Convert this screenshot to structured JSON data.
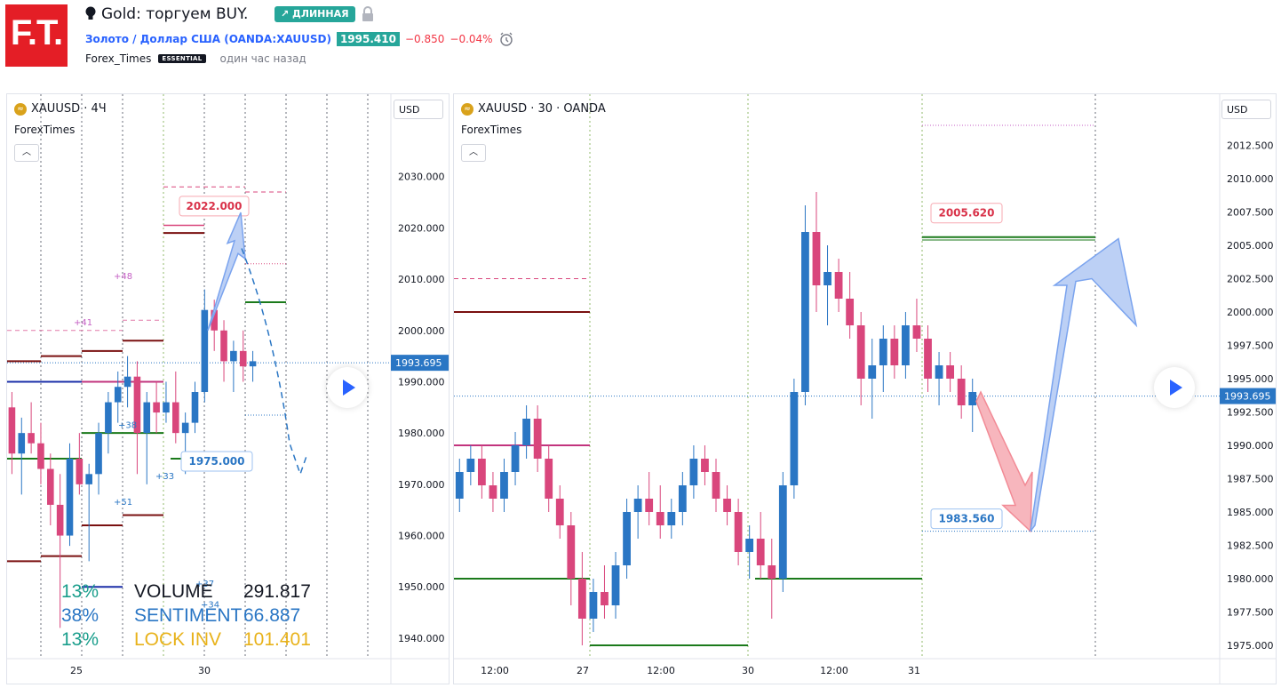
{
  "header": {
    "logo_text": "F.T.",
    "idea_title": "Gold: торгуем BUY.",
    "position_badge": "↗ ДЛИННАЯ",
    "symbol_name": "Золото / Доллар США",
    "symbol_code": "(OANDA:XAUUSD)",
    "price": "1995.410",
    "change": "−0.850",
    "change_pct": "−0.04%",
    "author": "Forex_Times",
    "author_badge": "ESSENTIAL",
    "time_ago": "один час назад"
  },
  "colors": {
    "up": "#2a76c4",
    "down": "#d9467c",
    "brand": "#e41e26",
    "accent": "#26a69a",
    "target_blue": "#2962ff",
    "target_red": "#f23645"
  },
  "left_panel": {
    "title": "XAUUSD · 4Ч",
    "subtitle": "ForexTimes",
    "currency": "USD",
    "last_price_label": "1993.695",
    "annotations": {
      "upper": "2022.000",
      "lower": "1975.000"
    },
    "small_labels": [
      "+48",
      "+41",
      "+38",
      "+33",
      "+51",
      "+37",
      "+34"
    ],
    "stats": [
      {
        "pct": "13%",
        "name": "VOLUME",
        "value": "291.817",
        "color": "#1a9e8c",
        "name_color": "#131722",
        "value_color": "#131722"
      },
      {
        "pct": "38%",
        "name": "SENTIMENT",
        "value": "66.887",
        "color": "#2a76c4",
        "name_color": "#2a76c4",
        "value_color": "#2a76c4"
      },
      {
        "pct": "13%",
        "name": "LOCK INV",
        "value": "101.401",
        "color": "#1a9e8c",
        "name_color": "#e8b21a",
        "value_color": "#e8b21a"
      }
    ]
  },
  "right_panel": {
    "title": "XAUUSD · 30 · OANDA",
    "subtitle": "ForexTimes",
    "currency": "USD",
    "last_price_label": "1993.695",
    "annotations": {
      "upper": "2005.620",
      "lower": "1983.560"
    }
  },
  "chart_data": [
    {
      "type": "candlestick",
      "title": "XAUUSD · 4Ч",
      "y_ticks": [
        "1940.000",
        "1950.000",
        "1960.000",
        "1970.000",
        "1980.000",
        "1990.000",
        "2000.000",
        "2010.000",
        "2020.000",
        "2030.000"
      ],
      "x_ticks": [
        "25",
        "30"
      ],
      "ylim": [
        1936,
        2040
      ],
      "last_price": 1993.695,
      "target_up": 2022.0,
      "target_down": 1975.0,
      "series": [
        {
          "name": "XAUUSD",
          "ohlc": [
            [
              1985,
              1988,
              1972,
              1976
            ],
            [
              1976,
              1983,
              1968,
              1980
            ],
            [
              1980,
              1986,
              1976,
              1978
            ],
            [
              1978,
              1982,
              1970,
              1973
            ],
            [
              1973,
              1976,
              1962,
              1966
            ],
            [
              1966,
              1972,
              1942,
              1960
            ],
            [
              1960,
              1978,
              1958,
              1975
            ],
            [
              1975,
              1980,
              1968,
              1970
            ],
            [
              1970,
              1974,
              1955,
              1972
            ],
            [
              1972,
              1982,
              1968,
              1980
            ],
            [
              1980,
              1988,
              1976,
              1986
            ],
            [
              1986,
              1992,
              1982,
              1989
            ],
            [
              1989,
              1995,
              1985,
              1991
            ],
            [
              1991,
              1994,
              1972,
              1980
            ],
            [
              1980,
              1988,
              1970,
              1986
            ],
            [
              1986,
              1990,
              1980,
              1984
            ],
            [
              1984,
              1990,
              1982,
              1986
            ],
            [
              1986,
              1992,
              1978,
              1980
            ],
            [
              1980,
              1984,
              1972,
              1982
            ],
            [
              1982,
              1990,
              1980,
              1988
            ],
            [
              1988,
              2008,
              1986,
              2004
            ],
            [
              2004,
              2006,
              1996,
              2000
            ],
            [
              2000,
              2002,
              1990,
              1994
            ],
            [
              1994,
              1998,
              1988,
              1996
            ],
            [
              1996,
              2000,
              1990,
              1993
            ],
            [
              1993,
              1996,
              1990,
              1994
            ]
          ]
        }
      ]
    },
    {
      "type": "candlestick",
      "title": "XAUUSD · 30 · OANDA",
      "y_ticks": [
        "1975.000",
        "1977.500",
        "1980.000",
        "1982.500",
        "1985.000",
        "1987.500",
        "1990.000",
        "1992.500",
        "1995.000",
        "1997.500",
        "2000.000",
        "2002.500",
        "2005.000",
        "2007.500",
        "2010.000",
        "2012.500"
      ],
      "x_ticks": [
        "12:00",
        "27",
        "12:00",
        "30",
        "12:00",
        "31"
      ],
      "ylim": [
        1974,
        2014
      ],
      "last_price": 1993.695,
      "target_up": 2005.62,
      "target_down": 1983.56,
      "series": [
        {
          "name": "XAUUSD",
          "ohlc": [
            [
              1986,
              1989,
              1985,
              1988
            ],
            [
              1988,
              1990,
              1987,
              1989
            ],
            [
              1989,
              1990,
              1986,
              1987
            ],
            [
              1987,
              1988,
              1985,
              1986
            ],
            [
              1986,
              1989,
              1985,
              1988
            ],
            [
              1988,
              1991,
              1987,
              1990
            ],
            [
              1990,
              1993,
              1989,
              1992
            ],
            [
              1992,
              1993,
              1988,
              1989
            ],
            [
              1989,
              1990,
              1985,
              1986
            ],
            [
              1986,
              1987,
              1983,
              1984
            ],
            [
              1984,
              1985,
              1978,
              1980
            ],
            [
              1980,
              1982,
              1975,
              1977
            ],
            [
              1977,
              1980,
              1976,
              1979
            ],
            [
              1979,
              1981,
              1977,
              1978
            ],
            [
              1978,
              1982,
              1977,
              1981
            ],
            [
              1981,
              1986,
              1980,
              1985
            ],
            [
              1985,
              1987,
              1983,
              1986
            ],
            [
              1986,
              1988,
              1984,
              1985
            ],
            [
              1985,
              1987,
              1983,
              1984
            ],
            [
              1984,
              1986,
              1983,
              1985
            ],
            [
              1985,
              1988,
              1984,
              1987
            ],
            [
              1987,
              1990,
              1986,
              1989
            ],
            [
              1989,
              1990,
              1987,
              1988
            ],
            [
              1988,
              1989,
              1985,
              1986
            ],
            [
              1986,
              1987,
              1984,
              1985
            ],
            [
              1985,
              1986,
              1981,
              1982
            ],
            [
              1982,
              1984,
              1980,
              1983
            ],
            [
              1983,
              1985,
              1980,
              1981
            ],
            [
              1981,
              1983,
              1977,
              1980
            ],
            [
              1980,
              1988,
              1979,
              1987
            ],
            [
              1987,
              1995,
              1986,
              1994
            ],
            [
              1994,
              2008,
              1993,
              2006
            ],
            [
              2006,
              2009,
              2000,
              2002
            ],
            [
              2002,
              2005,
              1999,
              2003
            ],
            [
              2003,
              2004,
              2000,
              2001
            ],
            [
              2001,
              2003,
              1998,
              1999
            ],
            [
              1999,
              2000,
              1993,
              1995
            ],
            [
              1995,
              1998,
              1992,
              1996
            ],
            [
              1996,
              1999,
              1994,
              1998
            ],
            [
              1998,
              1999,
              1995,
              1996
            ],
            [
              1996,
              2000,
              1995,
              1999
            ],
            [
              1999,
              2001,
              1997,
              1998
            ],
            [
              1998,
              1999,
              1994,
              1995
            ],
            [
              1995,
              1997,
              1993,
              1996
            ],
            [
              1996,
              1997,
              1994,
              1995
            ],
            [
              1995,
              1996,
              1992,
              1993
            ],
            [
              1993,
              1995,
              1991,
              1994
            ]
          ]
        }
      ]
    }
  ]
}
